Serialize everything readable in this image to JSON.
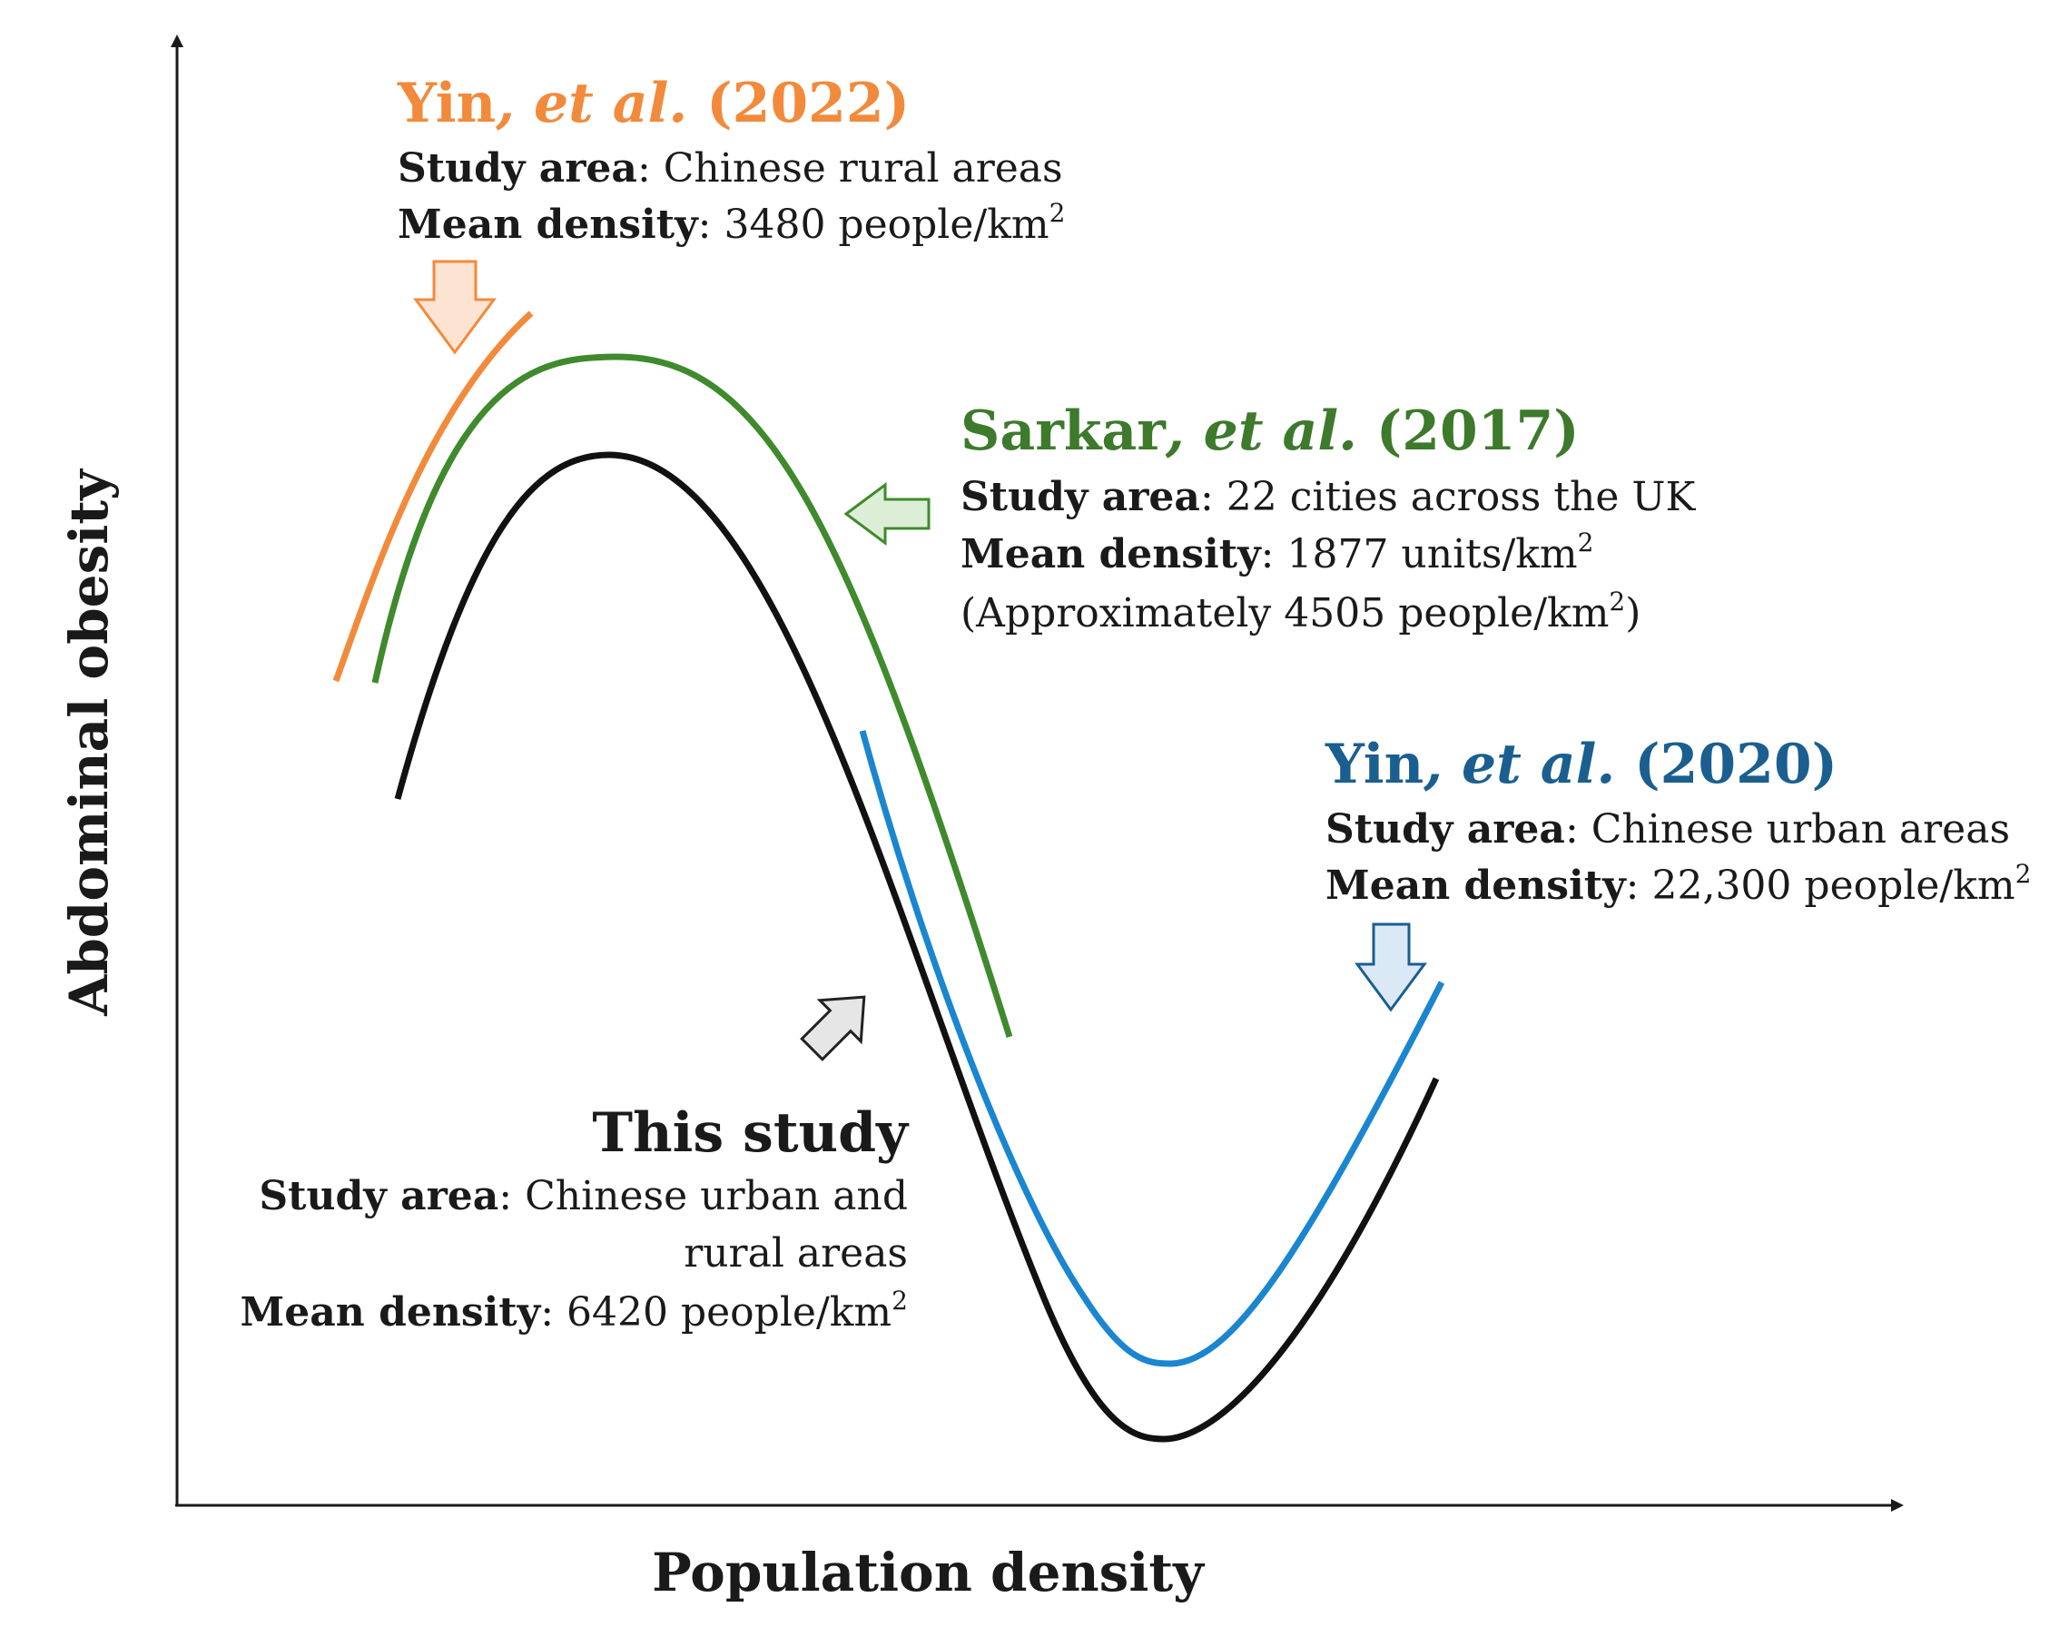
{
  "axes": {
    "x_label": "Population density",
    "y_label": "Abdominal obesity"
  },
  "colors": {
    "axis": "#1a1a1a",
    "orange": "#f28a3c",
    "green": "#3f8a2d",
    "blue": "#1a86d0",
    "black": "#111111",
    "orange_heading": "#f28a3c",
    "green_heading": "#3d7a2c",
    "blue_heading": "#1a5f8f"
  },
  "annotations": {
    "yin2022": {
      "author": "Yin",
      "etal": ", et al.",
      "year": " (2022)",
      "area_label": "Study area",
      "area_value": ": Chinese rural areas",
      "density_label": "Mean density",
      "density_value": ":  3480 people/km",
      "density_sup": "2"
    },
    "sarkar2017": {
      "author": "Sarkar",
      "etal": ", et al.",
      "year": " (2017)",
      "area_label": "Study area",
      "area_value": ": 22 cities across the UK",
      "density_label": "Mean density",
      "density_value": ": 1877 units/km",
      "density_sup": "2",
      "approx_prefix": "(Approximately 4505 people/km",
      "approx_sup": "2",
      "approx_suffix": ")"
    },
    "yin2020": {
      "author": "Yin",
      "etal": ", et al.",
      "year": " (2020)",
      "area_label": "Study area",
      "area_value": ": Chinese urban areas",
      "density_label": "Mean density",
      "density_value": ": 22,300 people/km",
      "density_sup": "2"
    },
    "this_study": {
      "title": "This study",
      "area_label": "Study area",
      "area_value": ": Chinese urban and",
      "area_value_line2": "rural areas",
      "density_label": "Mean density",
      "density_value": ": 6420 people/km",
      "density_sup": "2"
    }
  }
}
